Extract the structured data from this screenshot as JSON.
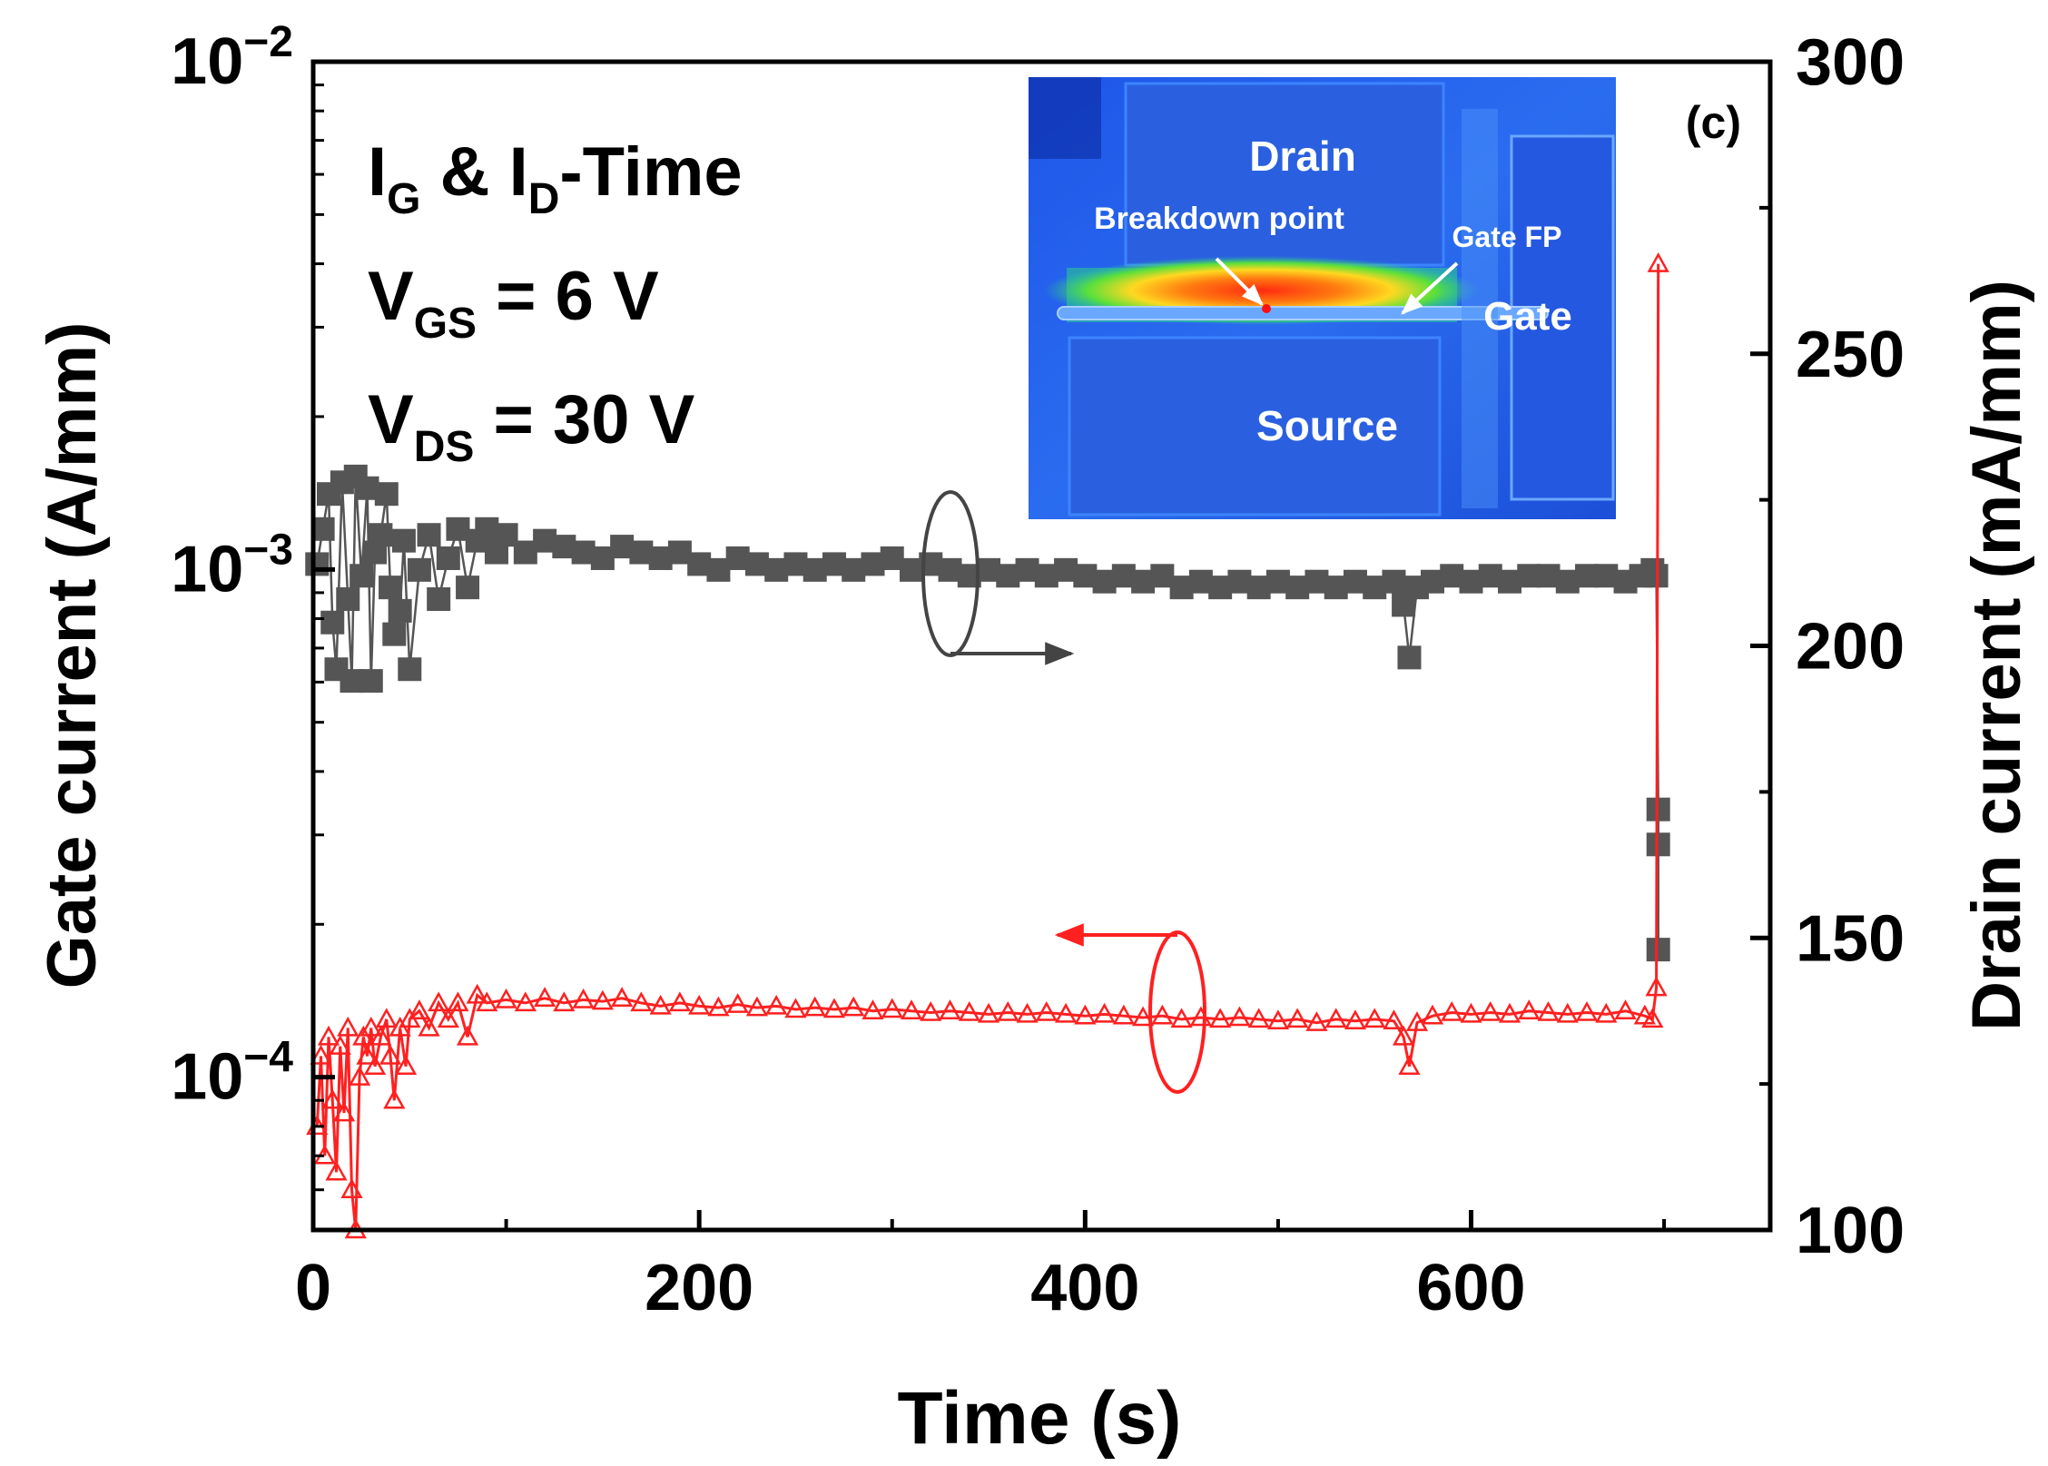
{
  "chart_data": {
    "type": "scatter",
    "panel_label": "(c)",
    "xlabel": "Time (s)",
    "ylabel_left": "Gate current (A/mm)",
    "ylabel_right": "Drain current (mA/mm)",
    "xlim": [
      0,
      755
    ],
    "x_ticks": [
      0,
      200,
      400,
      600
    ],
    "x_tick_labels": [
      "0",
      "200",
      "400",
      "600"
    ],
    "ylim_left": [
      5e-05,
      0.01
    ],
    "y_left_scale": "log",
    "y_left_ticks": [
      0.0001,
      0.001,
      0.01
    ],
    "y_left_tick_labels": [
      {
        "base": "10",
        "exp": "−4"
      },
      {
        "base": "10",
        "exp": "−3"
      },
      {
        "base": "10",
        "exp": "−2"
      }
    ],
    "ylim_right": [
      100,
      300
    ],
    "y_right_ticks": [
      100,
      150,
      200,
      250,
      300
    ],
    "y_right_tick_labels": [
      "100",
      "150",
      "200",
      "250",
      "300"
    ],
    "annotations": {
      "line1": {
        "main": "I",
        "sub1": "G",
        "mid": " & I",
        "sub2": "D",
        "tail": "-Time"
      },
      "line2": {
        "main": "V",
        "sub": "GS",
        "tail": " = 6 V"
      },
      "line3": {
        "main": "V",
        "sub": "DS",
        "tail": " = 30 V"
      }
    },
    "inset": {
      "labels": {
        "drain": "Drain",
        "source": "Source",
        "gate": "Gate",
        "gate_fp": "Gate FP",
        "breakdown": "Breakdown point"
      }
    },
    "colors": {
      "drain_series": "#555555",
      "gate_series": "#ff2020",
      "axis": "#000000"
    },
    "series": [
      {
        "axis": "right",
        "marker": "filled-square",
        "color": "#555555",
        "points": [
          [
            2,
            214
          ],
          [
            5,
            220
          ],
          [
            8,
            226
          ],
          [
            10,
            204
          ],
          [
            12,
            196
          ],
          [
            15,
            228
          ],
          [
            18,
            208
          ],
          [
            20,
            194
          ],
          [
            22,
            229
          ],
          [
            25,
            212
          ],
          [
            28,
            227
          ],
          [
            30,
            194
          ],
          [
            32,
            216
          ],
          [
            35,
            219
          ],
          [
            38,
            226
          ],
          [
            40,
            210
          ],
          [
            42,
            202
          ],
          [
            45,
            206
          ],
          [
            47,
            218
          ],
          [
            50,
            196
          ],
          [
            55,
            213
          ],
          [
            60,
            219
          ],
          [
            65,
            208
          ],
          [
            70,
            215
          ],
          [
            75,
            220
          ],
          [
            80,
            210
          ],
          [
            85,
            218
          ],
          [
            90,
            220
          ],
          [
            95,
            216
          ],
          [
            100,
            219
          ],
          [
            110,
            216
          ],
          [
            120,
            218
          ],
          [
            130,
            217
          ],
          [
            140,
            216
          ],
          [
            150,
            215
          ],
          [
            160,
            217
          ],
          [
            170,
            216
          ],
          [
            180,
            215
          ],
          [
            190,
            216
          ],
          [
            200,
            214
          ],
          [
            210,
            213
          ],
          [
            220,
            215
          ],
          [
            230,
            214
          ],
          [
            240,
            213
          ],
          [
            250,
            214
          ],
          [
            260,
            213
          ],
          [
            270,
            214
          ],
          [
            280,
            213
          ],
          [
            290,
            214
          ],
          [
            300,
            215
          ],
          [
            310,
            213
          ],
          [
            320,
            214
          ],
          [
            330,
            213
          ],
          [
            340,
            212
          ],
          [
            350,
            213
          ],
          [
            360,
            212
          ],
          [
            370,
            213
          ],
          [
            380,
            212
          ],
          [
            390,
            213
          ],
          [
            400,
            212
          ],
          [
            410,
            211
          ],
          [
            420,
            212
          ],
          [
            430,
            211
          ],
          [
            440,
            212
          ],
          [
            450,
            210
          ],
          [
            460,
            211
          ],
          [
            470,
            210
          ],
          [
            480,
            211
          ],
          [
            490,
            210
          ],
          [
            500,
            211
          ],
          [
            510,
            210
          ],
          [
            520,
            211
          ],
          [
            530,
            210
          ],
          [
            540,
            211
          ],
          [
            550,
            210
          ],
          [
            560,
            211
          ],
          [
            565,
            207
          ],
          [
            568,
            198
          ],
          [
            572,
            210
          ],
          [
            580,
            211
          ],
          [
            590,
            212
          ],
          [
            600,
            211
          ],
          [
            610,
            212
          ],
          [
            620,
            211
          ],
          [
            630,
            212
          ],
          [
            640,
            212
          ],
          [
            650,
            211
          ],
          [
            660,
            212
          ],
          [
            670,
            212
          ],
          [
            680,
            211
          ],
          [
            688,
            212
          ],
          [
            694,
            213
          ],
          [
            696,
            212
          ],
          [
            697,
            172
          ],
          [
            697,
            166
          ],
          [
            697,
            148
          ]
        ]
      },
      {
        "axis": "left",
        "marker": "hollow-triangle",
        "color": "#ff2020",
        "points": [
          [
            2,
            8e-05
          ],
          [
            4,
            0.00011
          ],
          [
            6,
            7e-05
          ],
          [
            8,
            0.00012
          ],
          [
            10,
            9e-05
          ],
          [
            12,
            6.5e-05
          ],
          [
            14,
            0.000115
          ],
          [
            16,
            8.5e-05
          ],
          [
            18,
            0.000125
          ],
          [
            20,
            6e-05
          ],
          [
            22,
            5e-05
          ],
          [
            24,
            0.0001
          ],
          [
            26,
            0.00012
          ],
          [
            28,
            0.00011
          ],
          [
            30,
            0.000125
          ],
          [
            32,
            0.000105
          ],
          [
            35,
            0.00012
          ],
          [
            38,
            0.00013
          ],
          [
            40,
            0.00011
          ],
          [
            42,
            9e-05
          ],
          [
            45,
            0.000125
          ],
          [
            48,
            0.000105
          ],
          [
            50,
            0.00013
          ],
          [
            55,
            0.000135
          ],
          [
            60,
            0.000125
          ],
          [
            65,
            0.00014
          ],
          [
            70,
            0.00013
          ],
          [
            75,
            0.00014
          ],
          [
            80,
            0.00012
          ],
          [
            85,
            0.000145
          ],
          [
            90,
            0.00014
          ],
          [
            100,
            0.000142
          ],
          [
            110,
            0.00014
          ],
          [
            120,
            0.000143
          ],
          [
            130,
            0.00014
          ],
          [
            140,
            0.000142
          ],
          [
            150,
            0.000141
          ],
          [
            160,
            0.000143
          ],
          [
            170,
            0.00014
          ],
          [
            180,
            0.000138
          ],
          [
            190,
            0.00014
          ],
          [
            200,
            0.000138
          ],
          [
            210,
            0.000137
          ],
          [
            220,
            0.000139
          ],
          [
            230,
            0.000137
          ],
          [
            240,
            0.000138
          ],
          [
            250,
            0.000136
          ],
          [
            260,
            0.000137
          ],
          [
            270,
            0.000136
          ],
          [
            280,
            0.000137
          ],
          [
            290,
            0.000135
          ],
          [
            300,
            0.000136
          ],
          [
            310,
            0.000135
          ],
          [
            320,
            0.000134
          ],
          [
            330,
            0.000135
          ],
          [
            340,
            0.000134
          ],
          [
            350,
            0.000133
          ],
          [
            360,
            0.000134
          ],
          [
            370,
            0.000133
          ],
          [
            380,
            0.000134
          ],
          [
            390,
            0.000133
          ],
          [
            400,
            0.000132
          ],
          [
            410,
            0.000133
          ],
          [
            420,
            0.000132
          ],
          [
            430,
            0.000131
          ],
          [
            440,
            0.000132
          ],
          [
            450,
            0.00013
          ],
          [
            460,
            0.000131
          ],
          [
            470,
            0.00013
          ],
          [
            480,
            0.000131
          ],
          [
            490,
            0.00013
          ],
          [
            500,
            0.000129
          ],
          [
            510,
            0.00013
          ],
          [
            520,
            0.000128
          ],
          [
            530,
            0.00013
          ],
          [
            540,
            0.000129
          ],
          [
            550,
            0.00013
          ],
          [
            560,
            0.000129
          ],
          [
            565,
            0.00012
          ],
          [
            568,
            0.000105
          ],
          [
            572,
            0.000128
          ],
          [
            580,
            0.000132
          ],
          [
            590,
            0.000134
          ],
          [
            600,
            0.000133
          ],
          [
            610,
            0.000134
          ],
          [
            620,
            0.000133
          ],
          [
            630,
            0.000135
          ],
          [
            640,
            0.000134
          ],
          [
            650,
            0.000133
          ],
          [
            660,
            0.000134
          ],
          [
            670,
            0.000133
          ],
          [
            680,
            0.000135
          ],
          [
            690,
            0.000132
          ],
          [
            694,
            0.00013
          ],
          [
            696,
            0.00015
          ],
          [
            697,
            0.004
          ]
        ]
      }
    ]
  }
}
